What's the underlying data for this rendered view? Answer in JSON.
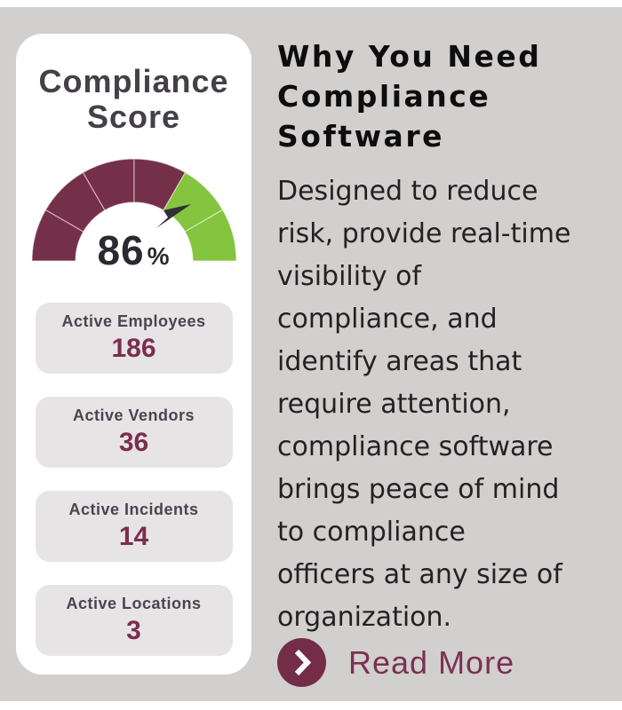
{
  "page": {
    "background_color": "#d2cfcf",
    "card_color": "#ffffff"
  },
  "card": {
    "title_lines": [
      "Compliance",
      "Score"
    ]
  },
  "chart_data": {
    "type": "gauge",
    "title": "Compliance Score",
    "value": "86",
    "unit": "%",
    "min": 0,
    "max": 100,
    "needle_color": "#332e36",
    "segments": [
      {
        "from": 0,
        "to": 16.67,
        "color": "#753049"
      },
      {
        "from": 16.67,
        "to": 33.33,
        "color": "#753049"
      },
      {
        "from": 33.33,
        "to": 50,
        "color": "#753049"
      },
      {
        "from": 50,
        "to": 66.67,
        "color": "#753049"
      },
      {
        "from": 66.67,
        "to": 83.33,
        "color": "#85C43E"
      },
      {
        "from": 83.33,
        "to": 100,
        "color": "#85C43E"
      }
    ]
  },
  "stats": [
    {
      "label": "Active Employees",
      "value": "186"
    },
    {
      "label": "Active Vendors",
      "value": "36"
    },
    {
      "label": "Active Incidents",
      "value": "14"
    },
    {
      "label": "Active Locations",
      "value": "3"
    }
  ],
  "article": {
    "title_lines": [
      "Why You Need",
      "Compliance",
      "Software"
    ],
    "body_lines": [
      "Designed to reduce",
      "risk, provide real-time",
      "visibility of",
      "compliance, and",
      "identify areas that",
      "require attention,",
      "compliance software",
      "brings peace of mind",
      "to compliance",
      "officers at any size of",
      "organization."
    ],
    "read_more_label": "Read More",
    "accent_color": "#7c3150"
  }
}
